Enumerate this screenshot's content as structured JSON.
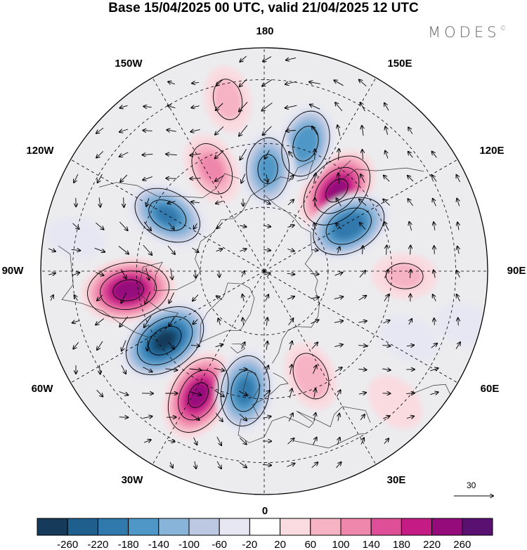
{
  "title": "Base 15/04/2025 00 UTC, valid 21/04/2025 12 UTC",
  "logo": {
    "text": "MODES",
    "mark": "©"
  },
  "longitude_labels": [
    {
      "id": "lon-180",
      "text": "180"
    },
    {
      "id": "lon-150e",
      "text": "150E"
    },
    {
      "id": "lon-120e",
      "text": "120E"
    },
    {
      "id": "lon-90e",
      "text": "90E"
    },
    {
      "id": "lon-60e",
      "text": "60E"
    },
    {
      "id": "lon-30e",
      "text": "30E"
    },
    {
      "id": "lon-0",
      "text": "0"
    },
    {
      "id": "lon-30w",
      "text": "30W"
    },
    {
      "id": "lon-60w",
      "text": "60W"
    },
    {
      "id": "lon-90w",
      "text": "90W"
    },
    {
      "id": "lon-120w",
      "text": "120W"
    },
    {
      "id": "lon-150w",
      "text": "150W"
    }
  ],
  "reference_vector": {
    "label": "30"
  },
  "colorbar": {
    "colors": [
      "#163a5a",
      "#1e5f8d",
      "#3079ad",
      "#4f97c6",
      "#88b4d9",
      "#bcc8e2",
      "#e6e7f2",
      "#ffffff",
      "#f9dbe0",
      "#f6b3c4",
      "#ef87ac",
      "#df4f98",
      "#c51b84",
      "#950b7c",
      "#5a1070"
    ],
    "labels": [
      "-260",
      "-220",
      "-180",
      "-140",
      "-100",
      "-60",
      "-20",
      "20",
      "60",
      "100",
      "140",
      "180",
      "220",
      "260"
    ]
  },
  "anomaly_centers": [
    {
      "lon": -82,
      "lat": 47,
      "value": 250
    },
    {
      "lon": -55,
      "lat": 52,
      "value": -270
    },
    {
      "lon": -28,
      "lat": 46,
      "value": 235
    },
    {
      "lon": -9,
      "lat": 52,
      "value": -190
    },
    {
      "lon": 24,
      "lat": 54,
      "value": 90
    },
    {
      "lon": 138,
      "lat": 56,
      "value": 235
    },
    {
      "lon": 118,
      "lat": 60,
      "value": -215
    },
    {
      "lon": 162,
      "lat": 48,
      "value": -170
    },
    {
      "lon": 178,
      "lat": 58,
      "value": -150
    },
    {
      "lon": -153,
      "lat": 54,
      "value": 110
    },
    {
      "lon": -120,
      "lat": 55,
      "value": -185
    },
    {
      "lon": 88,
      "lat": 46,
      "value": 60
    },
    {
      "lon": -168,
      "lat": 35,
      "value": 70
    },
    {
      "lon": 45,
      "lat": 32,
      "value": 40
    },
    {
      "lon": -100,
      "lat": 30,
      "value": -30
    },
    {
      "lon": 65,
      "lat": 40,
      "value": -40
    },
    {
      "lon": 75,
      "lat": 25,
      "value": -30
    }
  ]
}
